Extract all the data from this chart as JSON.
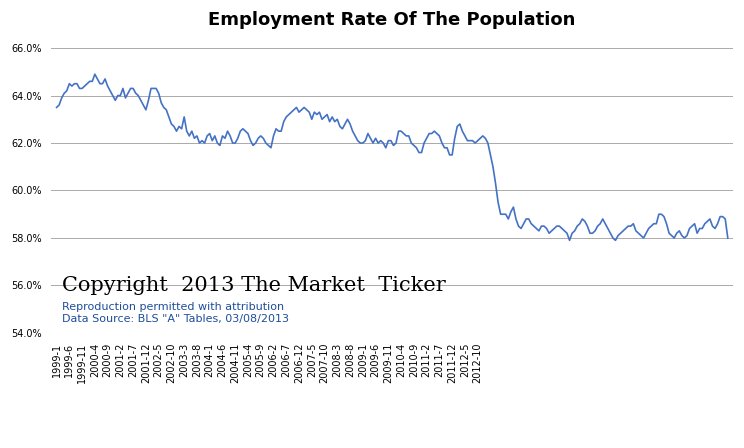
{
  "title": "Employment Rate Of The Population",
  "line_color": "#4472C4",
  "background_color": "#ffffff",
  "ylim": [
    54.0,
    66.5
  ],
  "yticks": [
    54.0,
    56.0,
    58.0,
    60.0,
    62.0,
    64.0,
    66.0
  ],
  "copyright_text": "Copyright  2013 The Market  Ticker",
  "attribution_text": "Reproduction permitted with attribution",
  "datasource_text": "Data Source: BLS \"A\" Tables, 03/08/2013",
  "values": [
    63.5,
    63.6,
    63.9,
    64.1,
    64.2,
    64.5,
    64.4,
    64.5,
    64.5,
    64.3,
    64.3,
    64.4,
    64.5,
    64.6,
    64.6,
    64.9,
    64.7,
    64.5,
    64.5,
    64.7,
    64.4,
    64.2,
    64.0,
    63.8,
    64.0,
    64.0,
    64.3,
    63.9,
    64.1,
    64.3,
    64.3,
    64.1,
    64.0,
    63.8,
    63.6,
    63.4,
    63.8,
    64.3,
    64.3,
    64.3,
    64.1,
    63.7,
    63.5,
    63.4,
    63.1,
    62.8,
    62.7,
    62.5,
    62.7,
    62.6,
    63.1,
    62.5,
    62.3,
    62.5,
    62.2,
    62.3,
    62.0,
    62.1,
    62.0,
    62.3,
    62.4,
    62.1,
    62.3,
    62.0,
    61.9,
    62.3,
    62.2,
    62.5,
    62.3,
    62.0,
    62.0,
    62.2,
    62.5,
    62.6,
    62.5,
    62.4,
    62.1,
    61.9,
    62.0,
    62.2,
    62.3,
    62.2,
    62.0,
    61.9,
    61.8,
    62.3,
    62.6,
    62.5,
    62.5,
    62.9,
    63.1,
    63.2,
    63.3,
    63.4,
    63.5,
    63.3,
    63.4,
    63.5,
    63.4,
    63.3,
    63.0,
    63.3,
    63.2,
    63.3,
    63.0,
    63.1,
    63.2,
    62.9,
    63.1,
    62.9,
    63.0,
    62.7,
    62.6,
    62.8,
    63.0,
    62.8,
    62.5,
    62.3,
    62.1,
    62.0,
    62.0,
    62.1,
    62.4,
    62.2,
    62.0,
    62.2,
    62.0,
    62.1,
    62.0,
    61.8,
    62.1,
    62.1,
    61.9,
    62.0,
    62.5,
    62.5,
    62.4,
    62.3,
    62.3,
    62.0,
    61.9,
    61.8,
    61.6,
    61.6,
    62.0,
    62.2,
    62.4,
    62.4,
    62.5,
    62.4,
    62.3,
    62.0,
    61.8,
    61.8,
    61.5,
    61.5,
    62.2,
    62.7,
    62.8,
    62.5,
    62.3,
    62.1,
    62.1,
    62.1,
    62.0,
    62.1,
    62.2,
    62.3,
    62.2,
    62.0,
    61.5,
    61.0,
    60.3,
    59.5,
    59.0,
    59.0,
    59.0,
    58.8,
    59.1,
    59.3,
    58.8,
    58.5,
    58.4,
    58.6,
    58.8,
    58.8,
    58.6,
    58.5,
    58.4,
    58.3,
    58.5,
    58.5,
    58.4,
    58.2,
    58.3,
    58.4,
    58.5,
    58.5,
    58.4,
    58.3,
    58.2,
    57.9,
    58.2,
    58.3,
    58.5,
    58.6,
    58.8,
    58.7,
    58.5,
    58.2,
    58.2,
    58.3,
    58.5,
    58.6,
    58.8,
    58.6,
    58.4,
    58.2,
    58.0,
    57.9,
    58.1,
    58.2,
    58.3,
    58.4,
    58.5,
    58.5,
    58.6,
    58.3,
    58.2,
    58.1,
    58.0,
    58.2,
    58.4,
    58.5,
    58.6,
    58.6,
    59.0,
    59.0,
    58.9,
    58.6,
    58.2,
    58.1,
    58.0,
    58.2,
    58.3,
    58.1,
    58.0,
    58.1,
    58.4,
    58.5,
    58.6,
    58.2,
    58.4,
    58.4,
    58.6,
    58.7,
    58.8,
    58.5,
    58.4,
    58.6,
    58.9,
    58.9,
    58.8,
    58.0
  ],
  "x_tick_labels": [
    "1999-1",
    "1999-6",
    "1999-11",
    "2000-4",
    "2000-9",
    "2001-2",
    "2001-7",
    "2001-12",
    "2002-5",
    "2002-10",
    "2003-3",
    "2003-8",
    "2004-1",
    "2004-6",
    "2004-11",
    "2005-4",
    "2005-9",
    "2006-2",
    "2006-7",
    "2006-12",
    "2007-5",
    "2007-10",
    "2008-3",
    "2008-8",
    "2009-1",
    "2009-6",
    "2009-11",
    "2010-4",
    "2010-9",
    "2011-2",
    "2011-7",
    "2011-12",
    "2012-5",
    "2012-10"
  ],
  "title_fontsize": 13,
  "tick_fontsize": 7,
  "copyright_fontsize": 15,
  "attribution_fontsize": 8,
  "datasource_fontsize": 8,
  "grid_color": "#aaaaaa",
  "line_width": 1.2
}
